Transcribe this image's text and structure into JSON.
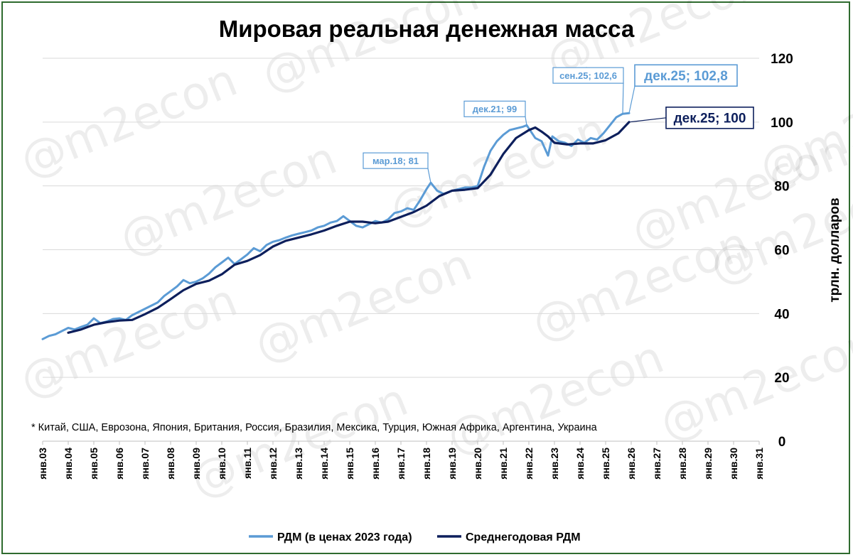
{
  "chart_data": {
    "type": "line",
    "title": "Мировая реальная денежная масса",
    "ylabel": "трлн. долларов",
    "ylim": [
      0,
      120
    ],
    "y_ticks": [
      "0",
      "20",
      "40",
      "60",
      "80",
      "100",
      "120"
    ],
    "y_axis_side": "right",
    "grid": "horizontal",
    "x_range": [
      "2003-01",
      "2031-01"
    ],
    "x_tick_labels": [
      "янв.03",
      "янв.04",
      "янв.05",
      "янв.06",
      "янв.07",
      "янв.08",
      "янв.09",
      "янв.10",
      "янв.11",
      "янв.12",
      "янв.13",
      "янв.14",
      "янв.15",
      "янв.16",
      "янв.17",
      "янв.18",
      "янв.19",
      "янв.20",
      "янв.21",
      "янв.22",
      "янв.23",
      "янв.24",
      "янв.25",
      "янв.26",
      "янв.27",
      "янв.28",
      "янв.29",
      "янв.30",
      "янв.31"
    ],
    "legend_position": "bottom",
    "footnote": "* Китай, США, Еврозона, Япония, Британия, Россия, Бразилия, Мексика, Турция, Южная Африка, Аргентина, Украина",
    "watermark": "@m2econ",
    "colors": {
      "rdm": "#5b9bd5",
      "avg": "#0d1f5c",
      "grid": "#d9d9d9"
    },
    "series": [
      {
        "name": "РДМ (в ценах 2023 года)",
        "color": "#5b9bd5",
        "points": [
          [
            "2003-01",
            32.0
          ],
          [
            "2003-04",
            33.0
          ],
          [
            "2003-07",
            33.5
          ],
          [
            "2003-10",
            34.5
          ],
          [
            "2004-01",
            35.5
          ],
          [
            "2004-04",
            35.0
          ],
          [
            "2004-07",
            35.8
          ],
          [
            "2004-10",
            36.5
          ],
          [
            "2005-01",
            38.5
          ],
          [
            "2005-04",
            37.0
          ],
          [
            "2005-07",
            37.5
          ],
          [
            "2005-10",
            38.3
          ],
          [
            "2006-01",
            38.5
          ],
          [
            "2006-04",
            38.0
          ],
          [
            "2006-07",
            39.5
          ],
          [
            "2006-10",
            40.5
          ],
          [
            "2007-01",
            41.5
          ],
          [
            "2007-04",
            42.5
          ],
          [
            "2007-07",
            43.5
          ],
          [
            "2007-10",
            45.5
          ],
          [
            "2008-01",
            47.0
          ],
          [
            "2008-04",
            48.5
          ],
          [
            "2008-07",
            50.5
          ],
          [
            "2008-10",
            49.5
          ],
          [
            "2009-01",
            50.0
          ],
          [
            "2009-04",
            51.0
          ],
          [
            "2009-07",
            52.5
          ],
          [
            "2009-10",
            54.5
          ],
          [
            "2010-01",
            56.0
          ],
          [
            "2010-04",
            57.5
          ],
          [
            "2010-07",
            55.5
          ],
          [
            "2010-10",
            57.0
          ],
          [
            "2011-01",
            58.5
          ],
          [
            "2011-04",
            60.5
          ],
          [
            "2011-07",
            59.5
          ],
          [
            "2011-10",
            61.5
          ],
          [
            "2012-01",
            62.5
          ],
          [
            "2012-04",
            63.0
          ],
          [
            "2012-07",
            63.8
          ],
          [
            "2012-10",
            64.5
          ],
          [
            "2013-01",
            65.0
          ],
          [
            "2013-04",
            65.5
          ],
          [
            "2013-07",
            66.0
          ],
          [
            "2013-10",
            67.0
          ],
          [
            "2014-01",
            67.5
          ],
          [
            "2014-04",
            68.5
          ],
          [
            "2014-07",
            69.0
          ],
          [
            "2014-10",
            70.5
          ],
          [
            "2015-01",
            69.0
          ],
          [
            "2015-04",
            67.5
          ],
          [
            "2015-07",
            67.0
          ],
          [
            "2015-10",
            68.0
          ],
          [
            "2016-01",
            69.0
          ],
          [
            "2016-04",
            68.5
          ],
          [
            "2016-07",
            69.5
          ],
          [
            "2016-10",
            71.5
          ],
          [
            "2017-01",
            72.0
          ],
          [
            "2017-04",
            73.0
          ],
          [
            "2017-07",
            72.5
          ],
          [
            "2017-10",
            75.5
          ],
          [
            "2018-01",
            79.0
          ],
          [
            "2018-03",
            81.0
          ],
          [
            "2018-06",
            78.5
          ],
          [
            "2018-09",
            77.5
          ],
          [
            "2019-01",
            78.5
          ],
          [
            "2019-04",
            79.0
          ],
          [
            "2019-07",
            79.5
          ],
          [
            "2019-10",
            79.5
          ],
          [
            "2020-01",
            80.0
          ],
          [
            "2020-04",
            86.0
          ],
          [
            "2020-07",
            91.0
          ],
          [
            "2020-10",
            94.0
          ],
          [
            "2021-01",
            96.0
          ],
          [
            "2021-04",
            97.5
          ],
          [
            "2021-07",
            98.0
          ],
          [
            "2021-10",
            98.5
          ],
          [
            "2021-12",
            99.0
          ],
          [
            "2022-02",
            97.0
          ],
          [
            "2022-04",
            95.0
          ],
          [
            "2022-07",
            94.0
          ],
          [
            "2022-10",
            89.5
          ],
          [
            "2022-12",
            95.5
          ],
          [
            "2023-03",
            94.0
          ],
          [
            "2023-06",
            93.5
          ],
          [
            "2023-09",
            92.5
          ],
          [
            "2023-12",
            94.5
          ],
          [
            "2024-03",
            93.5
          ],
          [
            "2024-06",
            95.0
          ],
          [
            "2024-09",
            94.5
          ],
          [
            "2024-12",
            96.5
          ],
          [
            "2025-03",
            99.0
          ],
          [
            "2025-06",
            101.5
          ],
          [
            "2025-09",
            102.6
          ],
          [
            "2025-12",
            102.8
          ]
        ]
      },
      {
        "name": "Среднегодовая РДМ",
        "color": "#0d1f5c",
        "points": [
          [
            "2004-01",
            34.0
          ],
          [
            "2004-07",
            35.0
          ],
          [
            "2005-01",
            36.5
          ],
          [
            "2005-07",
            37.3
          ],
          [
            "2006-01",
            37.8
          ],
          [
            "2006-07",
            38.0
          ],
          [
            "2007-01",
            39.8
          ],
          [
            "2007-07",
            41.8
          ],
          [
            "2008-01",
            44.5
          ],
          [
            "2008-07",
            47.3
          ],
          [
            "2009-01",
            49.3
          ],
          [
            "2009-07",
            50.3
          ],
          [
            "2010-01",
            52.3
          ],
          [
            "2010-07",
            55.3
          ],
          [
            "2011-01",
            56.5
          ],
          [
            "2011-07",
            58.3
          ],
          [
            "2012-01",
            61.0
          ],
          [
            "2012-07",
            62.8
          ],
          [
            "2013-01",
            63.8
          ],
          [
            "2013-07",
            64.8
          ],
          [
            "2014-01",
            66.0
          ],
          [
            "2014-07",
            67.5
          ],
          [
            "2015-01",
            68.8
          ],
          [
            "2015-07",
            68.8
          ],
          [
            "2016-01",
            68.3
          ],
          [
            "2016-07",
            68.8
          ],
          [
            "2017-01",
            70.3
          ],
          [
            "2017-07",
            71.8
          ],
          [
            "2018-01",
            73.8
          ],
          [
            "2018-07",
            76.8
          ],
          [
            "2019-01",
            78.5
          ],
          [
            "2019-07",
            78.8
          ],
          [
            "2020-01",
            79.3
          ],
          [
            "2020-07",
            83.5
          ],
          [
            "2021-01",
            90.0
          ],
          [
            "2021-07",
            95.0
          ],
          [
            "2022-01",
            97.5
          ],
          [
            "2022-04",
            98.3
          ],
          [
            "2022-07",
            97.0
          ],
          [
            "2022-10",
            95.5
          ],
          [
            "2023-01",
            93.5
          ],
          [
            "2023-07",
            93.0
          ],
          [
            "2024-01",
            93.3
          ],
          [
            "2024-07",
            93.3
          ],
          [
            "2025-01",
            94.3
          ],
          [
            "2025-07",
            96.5
          ],
          [
            "2025-12",
            100.0
          ]
        ]
      }
    ],
    "annotations": [
      {
        "text": "мар.18; 81",
        "at": [
          "2018-03",
          81.0
        ],
        "style": "small"
      },
      {
        "text": "дек.21; 99",
        "at": [
          "2021-12",
          99.0
        ],
        "style": "small"
      },
      {
        "text": "сен.25; 102,6",
        "at": [
          "2025-09",
          102.6
        ],
        "style": "small"
      },
      {
        "text": "дек.25; 102,8",
        "at": [
          "2025-12",
          102.8
        ],
        "style": "large-light"
      },
      {
        "text": "дек.25; 100",
        "at": [
          "2025-12",
          100.0
        ],
        "style": "large-dark"
      }
    ]
  }
}
